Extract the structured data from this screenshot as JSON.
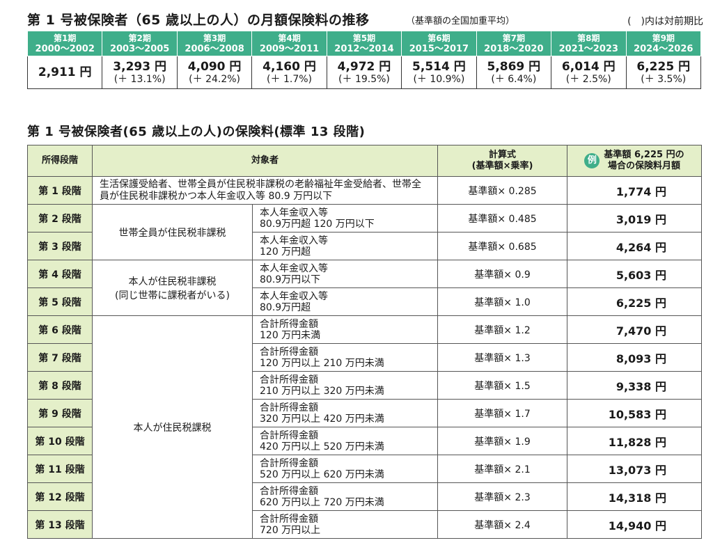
{
  "section1": {
    "title": "第 1 号被保険者（65 歳以上の人）の月額保険料の推移",
    "subtitle": "（基準額の全国加重平均）",
    "note": "(　)内は対前期比",
    "periods": [
      {
        "label": "第1期",
        "years": "2000～2002",
        "amount": "2,911 円",
        "change": ""
      },
      {
        "label": "第2期",
        "years": "2003～2005",
        "amount": "3,293 円",
        "change": "(＋ 13.1%)"
      },
      {
        "label": "第3期",
        "years": "2006～2008",
        "amount": "4,090 円",
        "change": "(＋ 24.2%)"
      },
      {
        "label": "第4期",
        "years": "2009～2011",
        "amount": "4,160 円",
        "change": "(＋ 1.7%)"
      },
      {
        "label": "第5期",
        "years": "2012～2014",
        "amount": "4,972 円",
        "change": "(＋ 19.5%)"
      },
      {
        "label": "第6期",
        "years": "2015～2017",
        "amount": "5,514 円",
        "change": "(＋ 10.9%)"
      },
      {
        "label": "第7期",
        "years": "2018～2020",
        "amount": "5,869 円",
        "change": "(＋ 6.4%)"
      },
      {
        "label": "第8期",
        "years": "2021～2023",
        "amount": "6,014 円",
        "change": "(＋ 2.5%)"
      },
      {
        "label": "第9期",
        "years": "2024～2026",
        "amount": "6,225 円",
        "change": "(＋ 3.5%)"
      }
    ]
  },
  "section2": {
    "title": "第 1 号被保険者(65 歳以上の人)の保険料(標準 13 段階)",
    "headers": {
      "stage": "所得段階",
      "target": "対象者",
      "formula_line1": "計算式",
      "formula_line2": "(基準額×乗率)",
      "example_icon": "例",
      "example_line1": "基準額 6,225 円の",
      "example_line2": "場合の保険料月額"
    },
    "groups": {
      "g1": "生活保護受給者、世帯全員が住民税非課税の老齢福祉年金受給者、世帯全員が住民税非課税かつ本人年金収入等 80.9 万円以下",
      "g2": "世帯全員が住民税非課税",
      "g3_line1": "本人が住民税非課税",
      "g3_line2": "(同じ世帯に課税者がいる)",
      "g4": "本人が住民税課税"
    },
    "rows": [
      {
        "stage": "第 1 段階",
        "income1": "",
        "income2": "",
        "formula": "基準額× 0.285",
        "monthly": "1,774 円"
      },
      {
        "stage": "第 2 段階",
        "income1": "本人年金収入等",
        "income2": "80.9万円超 120 万円以下",
        "formula": "基準額× 0.485",
        "monthly": "3,019 円"
      },
      {
        "stage": "第 3 段階",
        "income1": "本人年金収入等",
        "income2": "120 万円超",
        "formula": "基準額× 0.685",
        "monthly": "4,264 円"
      },
      {
        "stage": "第 4 段階",
        "income1": "本人年金収入等",
        "income2": "80.9万円以下",
        "formula": "基準額× 0.9",
        "monthly": "5,603 円"
      },
      {
        "stage": "第 5 段階",
        "income1": "本人年金収入等",
        "income2": "80.9万円超",
        "formula": "基準額× 1.0",
        "monthly": "6,225 円"
      },
      {
        "stage": "第 6 段階",
        "income1": "合計所得金額",
        "income2": "120 万円未満",
        "formula": "基準額× 1.2",
        "monthly": "7,470 円"
      },
      {
        "stage": "第 7 段階",
        "income1": "合計所得金額",
        "income2": "120 万円以上 210 万円未満",
        "formula": "基準額× 1.3",
        "monthly": "8,093 円"
      },
      {
        "stage": "第 8 段階",
        "income1": "合計所得金額",
        "income2": "210 万円以上 320 万円未満",
        "formula": "基準額× 1.5",
        "monthly": "9,338 円"
      },
      {
        "stage": "第 9 段階",
        "income1": "合計所得金額",
        "income2": "320 万円以上 420 万円未満",
        "formula": "基準額× 1.7",
        "monthly": "10,583 円"
      },
      {
        "stage": "第 10 段階",
        "income1": "合計所得金額",
        "income2": "420 万円以上 520 万円未満",
        "formula": "基準額× 1.9",
        "monthly": "11,828 円"
      },
      {
        "stage": "第 11 段階",
        "income1": "合計所得金額",
        "income2": "520 万円以上 620 万円未満",
        "formula": "基準額× 2.1",
        "monthly": "13,073 円"
      },
      {
        "stage": "第 12 段階",
        "income1": "合計所得金額",
        "income2": "620 万円以上 720 万円未満",
        "formula": "基準額× 2.3",
        "monthly": "14,318 円"
      },
      {
        "stage": "第 13 段階",
        "income1": "合計所得金額",
        "income2": "720 万円以上",
        "formula": "基準額× 2.4",
        "monthly": "14,940 円"
      }
    ]
  }
}
